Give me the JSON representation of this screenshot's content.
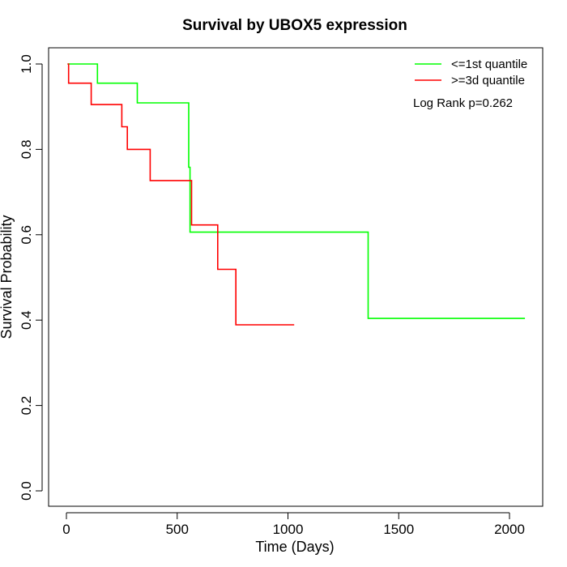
{
  "chart_data": {
    "type": "line",
    "step": true,
    "title": "Survival by UBOX5 expression",
    "xlabel": "Time (Days)",
    "ylabel": "Survival Probability",
    "xlim": [
      0,
      2070
    ],
    "ylim": [
      0,
      1
    ],
    "x_ticks": [
      0,
      500,
      1000,
      1500,
      2000
    ],
    "y_ticks": [
      0.0,
      0.2,
      0.4,
      0.6,
      0.8,
      1.0
    ],
    "x_tick_labels": [
      "0",
      "500",
      "1000",
      "1500",
      "2000"
    ],
    "y_tick_labels": [
      "0.0",
      "0.2",
      "0.4",
      "0.6",
      "0.8",
      "1.0"
    ],
    "grid": false,
    "legend_position": "top-right",
    "annotation": "Log Rank p=0.262",
    "series": [
      {
        "name": "<=1st quantile",
        "color": "#00ff00",
        "points": [
          [
            5,
            1.0
          ],
          [
            140,
            1.0
          ],
          [
            140,
            0.955
          ],
          [
            320,
            0.955
          ],
          [
            320,
            0.909
          ],
          [
            552,
            0.909
          ],
          [
            552,
            0.758
          ],
          [
            558,
            0.758
          ],
          [
            558,
            0.606
          ],
          [
            1362,
            0.606
          ],
          [
            1362,
            0.404
          ],
          [
            2070,
            0.404
          ]
        ]
      },
      {
        "name": ">=3d quantile",
        "color": "#ff0000",
        "points": [
          [
            5,
            1.0
          ],
          [
            10,
            1.0
          ],
          [
            10,
            0.955
          ],
          [
            112,
            0.955
          ],
          [
            112,
            0.905
          ],
          [
            250,
            0.905
          ],
          [
            250,
            0.853
          ],
          [
            275,
            0.853
          ],
          [
            275,
            0.8
          ],
          [
            378,
            0.8
          ],
          [
            378,
            0.727
          ],
          [
            565,
            0.727
          ],
          [
            565,
            0.623
          ],
          [
            683,
            0.623
          ],
          [
            683,
            0.519
          ],
          [
            765,
            0.519
          ],
          [
            765,
            0.389
          ],
          [
            1028,
            0.389
          ]
        ]
      }
    ]
  }
}
